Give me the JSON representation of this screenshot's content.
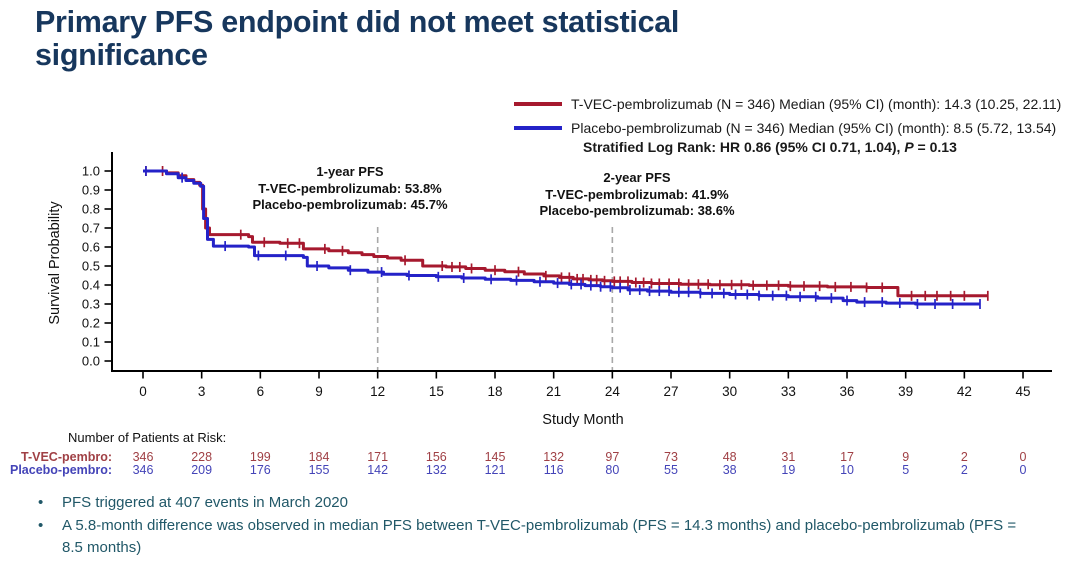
{
  "title": "Primary PFS endpoint did not meet statistical significance",
  "legend": {
    "series": [
      {
        "label": "T-VEC-pembrolizumab (N = 346)  Median (95% CI) (month): 14.3 (10.25, 22.11)",
        "color": "#A6192E"
      },
      {
        "label": "Placebo-pembrolizumab (N = 346)  Median (95% CI) (month): 8.5 (5.72, 13.54)",
        "color": "#2422C8"
      }
    ],
    "stat_prefix": "Stratified Log Rank: HR 0.86 (95% CI 0.71, 1.04), ",
    "stat_p": "P",
    "stat_rest": " = 0.13"
  },
  "chart_data": {
    "type": "line",
    "subtype": "kaplan-meier-step",
    "xlabel": "Study Month",
    "ylabel": "Survival Probability",
    "xlim": [
      0,
      45
    ],
    "ylim": [
      0.0,
      1.0
    ],
    "x_ticks": [
      0,
      3,
      6,
      9,
      12,
      15,
      18,
      21,
      24,
      27,
      30,
      33,
      36,
      39,
      42,
      45
    ],
    "y_ticks": [
      0.0,
      0.1,
      0.2,
      0.3,
      0.4,
      0.5,
      0.6,
      0.7,
      0.8,
      0.9,
      1.0
    ],
    "axis_color": "#000000",
    "dashed_line_color": "#A8A8A8",
    "dashed_lines_at_months": [
      12,
      24
    ],
    "series": [
      {
        "name": "T-VEC-pembrolizumab",
        "color": "#A6192E",
        "points": [
          [
            0,
            1.0
          ],
          [
            1.2,
            0.99
          ],
          [
            1.8,
            0.975
          ],
          [
            2.2,
            0.955
          ],
          [
            2.6,
            0.94
          ],
          [
            2.9,
            0.925
          ],
          [
            3.05,
            0.8
          ],
          [
            3.2,
            0.7
          ],
          [
            3.4,
            0.665
          ],
          [
            5.4,
            0.655
          ],
          [
            5.6,
            0.625
          ],
          [
            7.0,
            0.62
          ],
          [
            8.2,
            0.59
          ],
          [
            9.5,
            0.58
          ],
          [
            10.5,
            0.57
          ],
          [
            11.2,
            0.56
          ],
          [
            11.8,
            0.55
          ],
          [
            12.5,
            0.542
          ],
          [
            13.2,
            0.53
          ],
          [
            14.3,
            0.5
          ],
          [
            15.5,
            0.495
          ],
          [
            16.5,
            0.487
          ],
          [
            17.5,
            0.478
          ],
          [
            18.5,
            0.47
          ],
          [
            19.5,
            0.458
          ],
          [
            20.5,
            0.448
          ],
          [
            21.3,
            0.44
          ],
          [
            22.0,
            0.432
          ],
          [
            22.8,
            0.427
          ],
          [
            23.5,
            0.422
          ],
          [
            24.0,
            0.419
          ],
          [
            25.0,
            0.413
          ],
          [
            26.0,
            0.408
          ],
          [
            27.5,
            0.404
          ],
          [
            29.0,
            0.401
          ],
          [
            31.0,
            0.398
          ],
          [
            33.0,
            0.394
          ],
          [
            35.0,
            0.39
          ],
          [
            37.0,
            0.387
          ],
          [
            38.6,
            0.343
          ],
          [
            43.2,
            0.343
          ]
        ],
        "censor_months": [
          0.15,
          1.0,
          3.3,
          5.0,
          6.2,
          7.4,
          8.0,
          9.3,
          10.2,
          13.4,
          15.3,
          15.8,
          16.2,
          16.8,
          18.0,
          19.2,
          20.6,
          21.4,
          21.8,
          22.2,
          22.5,
          22.9,
          23.2,
          23.6,
          24.1,
          24.4,
          24.8,
          25.2,
          25.6,
          26.0,
          26.4,
          26.9,
          27.4,
          27.9,
          28.4,
          28.9,
          29.5,
          30.1,
          30.6,
          31.2,
          31.9,
          32.5,
          33.1,
          33.8,
          34.6,
          35.4,
          36.2,
          37.0,
          37.8,
          39.3,
          40.0,
          40.6,
          41.3,
          42.0,
          43.2
        ]
      },
      {
        "name": "Placebo-pembrolizumab",
        "color": "#2422C8",
        "points": [
          [
            0,
            1.0
          ],
          [
            1.2,
            0.985
          ],
          [
            1.8,
            0.965
          ],
          [
            2.2,
            0.95
          ],
          [
            2.6,
            0.935
          ],
          [
            2.95,
            0.92
          ],
          [
            3.1,
            0.75
          ],
          [
            3.3,
            0.64
          ],
          [
            3.6,
            0.605
          ],
          [
            5.4,
            0.6
          ],
          [
            5.7,
            0.555
          ],
          [
            8.2,
            0.545
          ],
          [
            8.4,
            0.5
          ],
          [
            9.5,
            0.49
          ],
          [
            10.5,
            0.478
          ],
          [
            11.5,
            0.468
          ],
          [
            12.3,
            0.457
          ],
          [
            13.5,
            0.45
          ],
          [
            15.0,
            0.443
          ],
          [
            16.3,
            0.437
          ],
          [
            17.5,
            0.43
          ],
          [
            18.8,
            0.424
          ],
          [
            20.0,
            0.417
          ],
          [
            21.0,
            0.41
          ],
          [
            21.8,
            0.403
          ],
          [
            22.6,
            0.397
          ],
          [
            23.4,
            0.391
          ],
          [
            24.0,
            0.386
          ],
          [
            24.8,
            0.374
          ],
          [
            25.8,
            0.368
          ],
          [
            27.0,
            0.362
          ],
          [
            28.5,
            0.356
          ],
          [
            30.0,
            0.35
          ],
          [
            31.5,
            0.344
          ],
          [
            33.0,
            0.338
          ],
          [
            34.5,
            0.331
          ],
          [
            35.8,
            0.318
          ],
          [
            36.5,
            0.31
          ],
          [
            38.0,
            0.305
          ],
          [
            39.5,
            0.3
          ],
          [
            42.8,
            0.3
          ]
        ],
        "censor_months": [
          0.15,
          2.0,
          4.2,
          5.9,
          7.3,
          8.9,
          10.6,
          12.2,
          13.6,
          15.1,
          16.4,
          17.8,
          19.1,
          20.3,
          21.2,
          21.9,
          22.4,
          22.9,
          23.4,
          23.9,
          24.4,
          24.9,
          25.4,
          25.9,
          26.4,
          26.9,
          27.4,
          27.9,
          28.5,
          29.1,
          29.7,
          30.3,
          30.9,
          31.5,
          32.2,
          32.9,
          33.6,
          34.4,
          35.2,
          36.0,
          36.9,
          37.8,
          38.7,
          39.6,
          40.5,
          41.4,
          42.8
        ]
      }
    ],
    "annotations": [
      {
        "x_month": 12,
        "lines": [
          "1-year PFS",
          "T-VEC-pembrolizumab: 53.8%",
          "Placebo-pembrolizumab: 45.7%"
        ]
      },
      {
        "x_month": 24,
        "lines": [
          "2-year PFS",
          "T-VEC-pembrolizumab: 41.9%",
          "Placebo-pembrolizumab: 38.6%"
        ]
      }
    ]
  },
  "risk_table": {
    "header": "Number of Patients at Risk:",
    "rows": [
      {
        "label": "T-VEC-pembro:",
        "color": "#A04045",
        "values": [
          346,
          228,
          199,
          184,
          171,
          156,
          145,
          132,
          97,
          73,
          48,
          31,
          17,
          9,
          2,
          0
        ]
      },
      {
        "label": "Placebo-pembro:",
        "color": "#4444B8",
        "values": [
          346,
          209,
          176,
          155,
          142,
          132,
          121,
          116,
          80,
          55,
          38,
          19,
          10,
          5,
          2,
          0
        ]
      }
    ]
  },
  "bullets": {
    "marker": "•",
    "items": [
      "PFS triggered at 407 events in March 2020",
      "A 5.8-month difference was observed in median PFS between T-VEC-pembrolizumab (PFS = 14.3 months) and placebo-pembrolizumab (PFS = 8.5 months)"
    ]
  }
}
